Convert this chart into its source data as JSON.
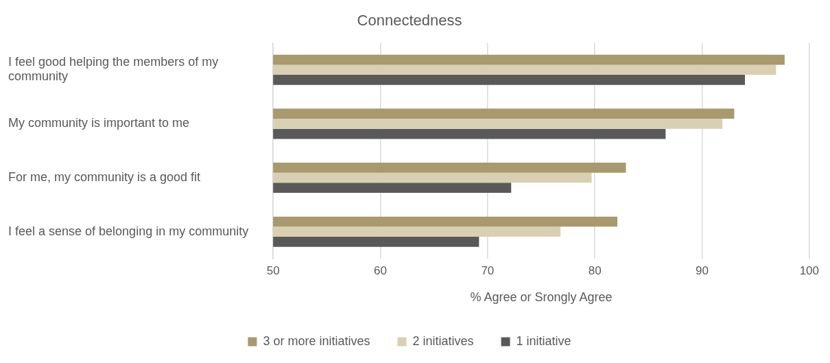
{
  "chart_data": {
    "type": "bar",
    "orientation": "horizontal",
    "title": "Connectedness",
    "xlabel": "% Agree or Srongly Agree",
    "categories": [
      "I feel good helping the members of my community",
      "My community is important to me",
      "For me, my community is a good fit",
      "I feel a sense of belonging in my community"
    ],
    "series": [
      {
        "name": "3 or more initiatives",
        "color": "#a8996e",
        "values": [
          97.7,
          93.0,
          82.9,
          82.1
        ]
      },
      {
        "name": "2 initiatives",
        "color": "#d9cfb2",
        "values": [
          96.9,
          91.9,
          79.7,
          76.8
        ]
      },
      {
        "name": "1 initiative",
        "color": "#595959",
        "values": [
          94.0,
          86.6,
          72.2,
          69.2
        ]
      }
    ],
    "xlim": [
      50,
      100
    ],
    "xticks": [
      50,
      60,
      70,
      80,
      90,
      100
    ],
    "grid": "x",
    "legend": "bottom"
  }
}
